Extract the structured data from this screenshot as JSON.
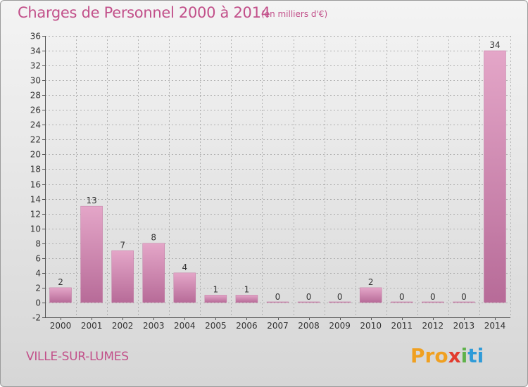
{
  "title": "Charges de Personnel 2000 à 2014",
  "subtitle": "(en milliers d'€)",
  "commune": "VILLE-SUR-LUMES",
  "brand": {
    "p1": "Pro",
    "p2": "x",
    "p3": "i",
    "p4": "ti"
  },
  "colors": {
    "bar_top": "#e4a6c8",
    "bar_bottom": "#b76b98",
    "text": "#c2508a",
    "grid": "#b0b0b0"
  },
  "chart_data": {
    "type": "bar",
    "categories": [
      "2000",
      "2001",
      "2002",
      "2003",
      "2004",
      "2005",
      "2006",
      "2007",
      "2008",
      "2009",
      "2010",
      "2011",
      "2012",
      "2013",
      "2014"
    ],
    "values": [
      2,
      13,
      7,
      8,
      4,
      1,
      1,
      0,
      0,
      0,
      2,
      0,
      0,
      0,
      34
    ],
    "ylim": [
      -2,
      36
    ],
    "yticks": [
      -2,
      0,
      2,
      4,
      6,
      8,
      10,
      12,
      14,
      16,
      18,
      20,
      22,
      24,
      26,
      28,
      30,
      32,
      34,
      36
    ],
    "grid": true,
    "legend": "none"
  }
}
